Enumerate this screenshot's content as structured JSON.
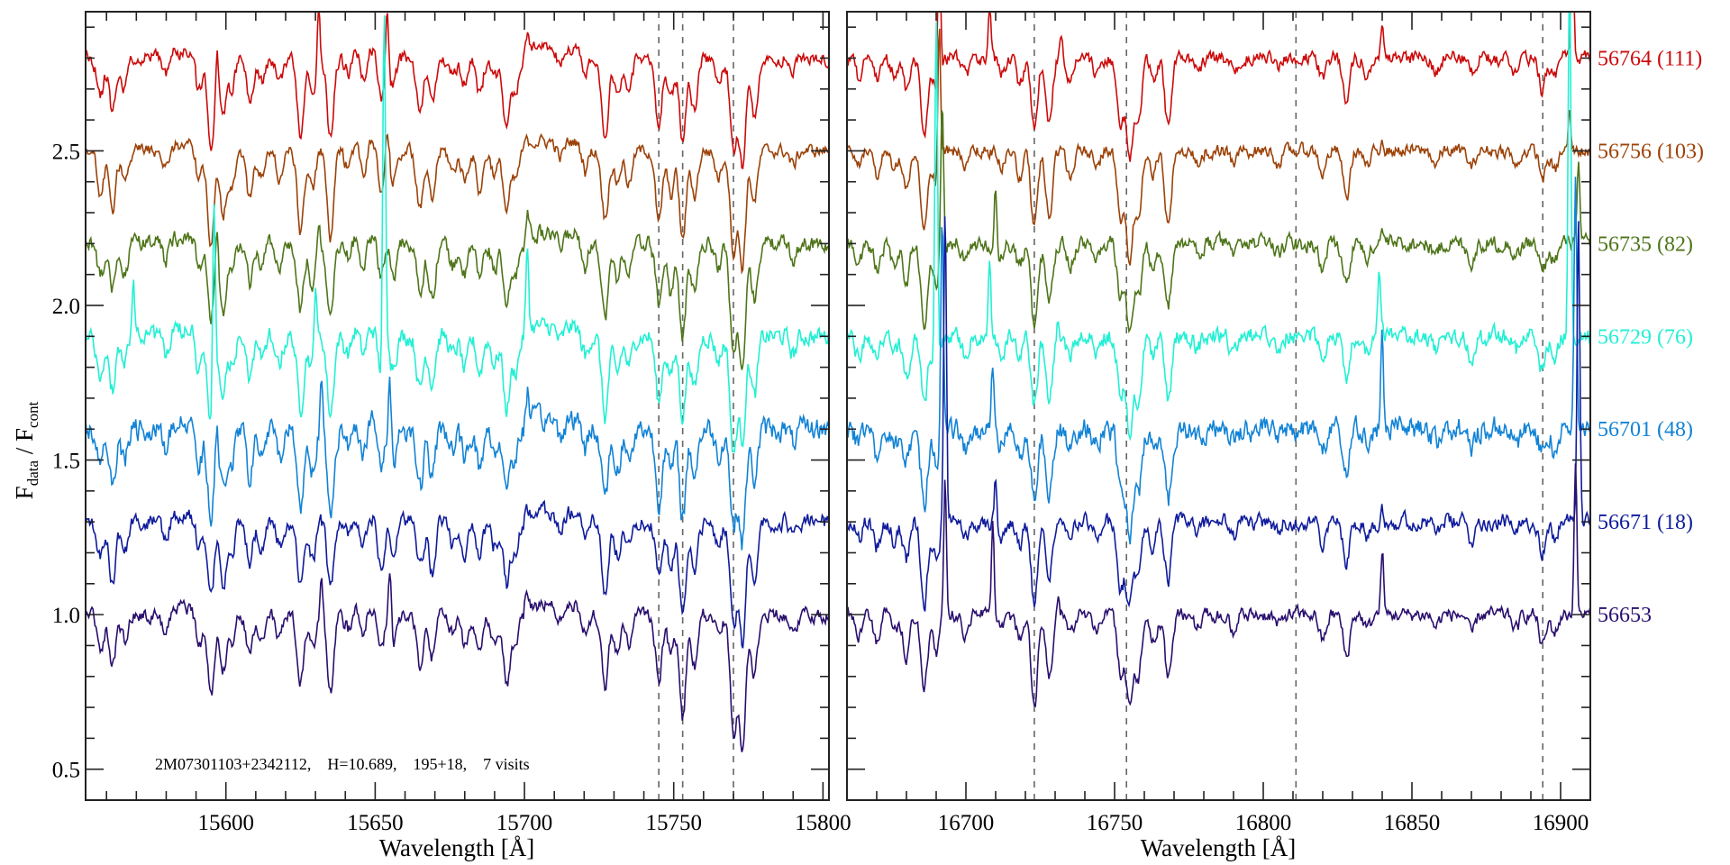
{
  "chart_data": {
    "type": "line",
    "title": "",
    "ylabel_main": "F",
    "ylabel_sub1": "data",
    "ylabel_sep": " / F",
    "ylabel_sub2": "cont",
    "annotation": "2M07301103+2342112,    H=10.689,    195+18,    7 visits",
    "ylim": [
      0.4,
      2.95
    ],
    "yticks": [
      0.5,
      1.0,
      1.5,
      2.0,
      2.5
    ],
    "ytick_labels": [
      "0.5",
      "1.0",
      "1.5",
      "2.0",
      "2.5"
    ],
    "grid": false,
    "panels": [
      {
        "xlabel": "Wavelength [Å]",
        "xlim": [
          15553,
          15802
        ],
        "xticks": [
          15600,
          15650,
          15700,
          15750,
          15800
        ],
        "xtick_labels": [
          "15600",
          "15650",
          "15700",
          "15750",
          "15800"
        ],
        "dashed_lines": [
          15745,
          15753,
          15770
        ],
        "absorption": [
          [
            15558,
            0.12
          ],
          [
            15562,
            0.18
          ],
          [
            15566,
            0.1
          ],
          [
            15580,
            0.06
          ],
          [
            15591,
            0.1
          ],
          [
            15595,
            0.28
          ],
          [
            15599,
            0.2
          ],
          [
            15602,
            0.1
          ],
          [
            15608,
            0.14
          ],
          [
            15612,
            0.08
          ],
          [
            15618,
            0.08
          ],
          [
            15625,
            0.24
          ],
          [
            15629,
            0.12
          ],
          [
            15635,
            0.26
          ],
          [
            15641,
            0.08
          ],
          [
            15646,
            0.1
          ],
          [
            15652,
            0.16
          ],
          [
            15656,
            0.1
          ],
          [
            15665,
            0.18
          ],
          [
            15669,
            0.16
          ],
          [
            15676,
            0.07
          ],
          [
            15680,
            0.1
          ],
          [
            15685,
            0.12
          ],
          [
            15690,
            0.08
          ],
          [
            15694,
            0.22
          ],
          [
            15697,
            0.1
          ],
          [
            15712,
            0.05
          ],
          [
            15720,
            0.07
          ],
          [
            15727,
            0.24
          ],
          [
            15731,
            0.12
          ],
          [
            15735,
            0.1
          ],
          [
            15745,
            0.22
          ],
          [
            15749,
            0.14
          ],
          [
            15753,
            0.3
          ],
          [
            15757,
            0.16
          ],
          [
            15765,
            0.08
          ],
          [
            15770,
            0.34
          ],
          [
            15773,
            0.38
          ],
          [
            15777,
            0.18
          ],
          [
            15790,
            0.05
          ]
        ],
        "continuum_bumps": [
          [
            15580,
            15590,
            0.02
          ],
          [
            15640,
            15655,
            0.03
          ],
          [
            15700,
            15720,
            0.03
          ]
        ]
      },
      {
        "xlabel": "Wavelength [Å]",
        "xlim": [
          16660,
          16910
        ],
        "xticks": [
          16700,
          16750,
          16800,
          16850,
          16900
        ],
        "xtick_labels": [
          "16700",
          "16750",
          "16800",
          "16850",
          "16900"
        ],
        "dashed_lines": [
          16723,
          16754,
          16811,
          16894
        ],
        "absorption": [
          [
            16664,
            0.06
          ],
          [
            16670,
            0.08
          ],
          [
            16676,
            0.06
          ],
          [
            16680,
            0.12
          ],
          [
            16686,
            0.26
          ],
          [
            16690,
            0.12
          ],
          [
            16700,
            0.06
          ],
          [
            16712,
            0.05
          ],
          [
            16718,
            0.08
          ],
          [
            16723,
            0.26
          ],
          [
            16728,
            0.2
          ],
          [
            16735,
            0.08
          ],
          [
            16744,
            0.06
          ],
          [
            16752,
            0.2
          ],
          [
            16755,
            0.32
          ],
          [
            16758,
            0.2
          ],
          [
            16763,
            0.08
          ],
          [
            16768,
            0.22
          ],
          [
            16778,
            0.04
          ],
          [
            16790,
            0.05
          ],
          [
            16805,
            0.04
          ],
          [
            16820,
            0.08
          ],
          [
            16828,
            0.14
          ],
          [
            16835,
            0.05
          ],
          [
            16858,
            0.04
          ],
          [
            16870,
            0.06
          ],
          [
            16885,
            0.05
          ],
          [
            16894,
            0.1
          ],
          [
            16898,
            0.06
          ]
        ],
        "continuum_bumps": []
      }
    ],
    "series": [
      {
        "name": "56764 (111)",
        "color": "#cc0a0a",
        "offset": 2.8,
        "noise": 0.012,
        "seed": 11,
        "emission": [
          [
            15597,
            0.12
          ],
          [
            15631,
            0.2
          ],
          [
            15654,
            0.18
          ],
          [
            15701,
            0.06
          ],
          [
            16691,
            0.5
          ],
          [
            16708,
            0.15
          ],
          [
            16732,
            0.06
          ],
          [
            16840,
            0.12
          ],
          [
            16904,
            0.5
          ]
        ]
      },
      {
        "name": "56756 (103)",
        "color": "#9c4208",
        "offset": 2.5,
        "noise": 0.011,
        "seed": 23,
        "emission": [
          [
            15654,
            0.08
          ],
          [
            16691,
            0.5
          ],
          [
            16840,
            0.05
          ],
          [
            16903,
            0.12
          ]
        ]
      },
      {
        "name": "56735 (82)",
        "color": "#4e7519",
        "offset": 2.2,
        "noise": 0.014,
        "seed": 37,
        "emission": [
          [
            15597,
            0.15
          ],
          [
            15631,
            0.08
          ],
          [
            15701,
            0.07
          ],
          [
            16692,
            0.5
          ],
          [
            16710,
            0.18
          ],
          [
            16840,
            0.05
          ],
          [
            16906,
            0.25
          ]
        ]
      },
      {
        "name": "56729 (76)",
        "color": "#22f0d4",
        "offset": 1.9,
        "noise": 0.016,
        "seed": 41,
        "emission": [
          [
            15569,
            0.18
          ],
          [
            15596,
            0.6
          ],
          [
            15630,
            0.25
          ],
          [
            15653,
            1.1
          ],
          [
            15701,
            0.25
          ],
          [
            16690,
            1.2
          ],
          [
            16708,
            0.25
          ],
          [
            16731,
            0.08
          ],
          [
            16839,
            0.2
          ],
          [
            16903,
            1.2
          ]
        ]
      },
      {
        "name": "56701 (48)",
        "color": "#1283d6",
        "offset": 1.6,
        "noise": 0.02,
        "seed": 53,
        "emission": [
          [
            15597,
            0.1
          ],
          [
            15632,
            0.15
          ],
          [
            15655,
            0.2
          ],
          [
            15701,
            0.1
          ],
          [
            16692,
            0.7
          ],
          [
            16709,
            0.18
          ],
          [
            16840,
            0.3
          ],
          [
            16905,
            0.8
          ]
        ]
      },
      {
        "name": "56671 (18)",
        "color": "#101c9c",
        "offset": 1.3,
        "noise": 0.014,
        "seed": 67,
        "emission": [
          [
            16693,
            1.0
          ],
          [
            16710,
            0.15
          ],
          [
            16840,
            0.05
          ],
          [
            16906,
            1.0
          ]
        ]
      },
      {
        "name": "56653",
        "color": "#2a0f6e",
        "offset": 1.0,
        "noise": 0.012,
        "seed": 79,
        "emission": [
          [
            15632,
            0.12
          ],
          [
            15655,
            0.18
          ],
          [
            15701,
            0.05
          ],
          [
            16693,
            0.45
          ],
          [
            16709,
            0.3
          ],
          [
            16731,
            0.05
          ],
          [
            16840,
            0.22
          ],
          [
            16905,
            0.5
          ]
        ]
      }
    ]
  }
}
